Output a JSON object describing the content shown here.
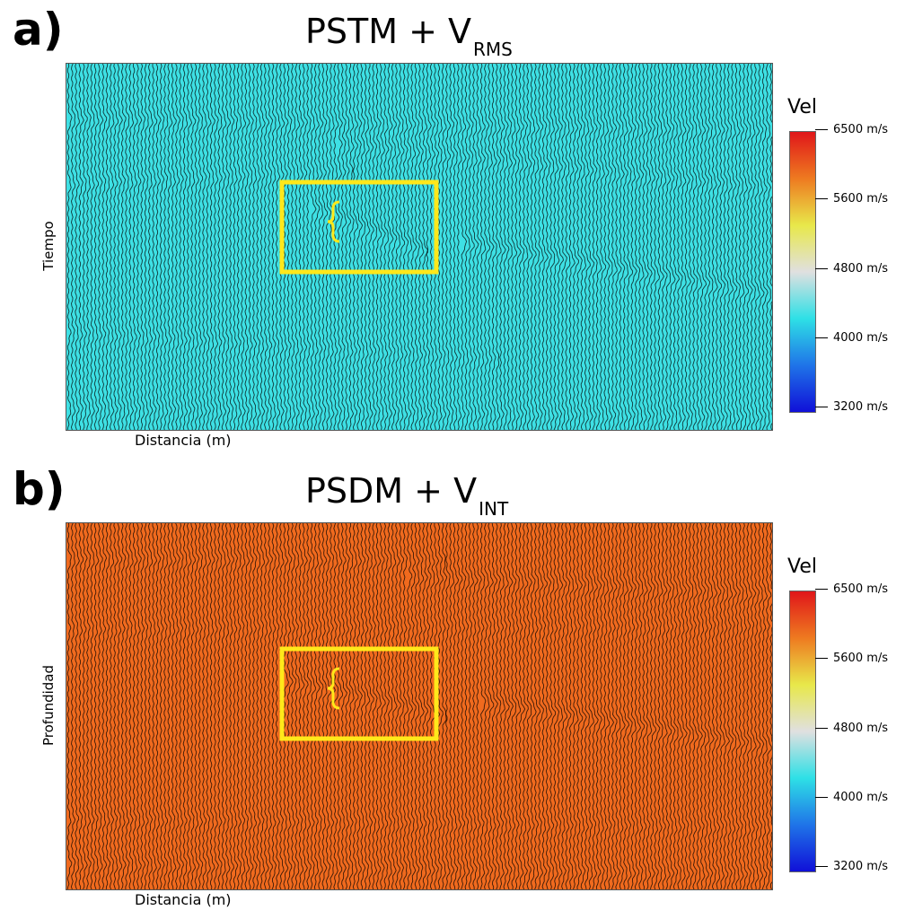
{
  "panels": [
    {
      "letter": "a)",
      "title_main": "PSTM + V",
      "title_sub": "RMS",
      "ylabel": "Tiempo",
      "xlabel": "Distancia (m)",
      "background_color": "#3ee0e4",
      "wiggle_color": "#000000",
      "highlight_color": "#ffe81a"
    },
    {
      "letter": "b)",
      "title_main": "PSDM + V",
      "title_sub": "INT",
      "ylabel": "Profundidad",
      "xlabel": "Distancia (m)",
      "background_color": "#f06a1e",
      "wiggle_color": "#000000",
      "highlight_color": "#ffe81a"
    }
  ],
  "colorbar": {
    "title": "Vel",
    "ticks": [
      "6500 m/s",
      "5600 m/s",
      "4800 m/s",
      "4000 m/s",
      "3200 m/s"
    ],
    "colors": [
      "#e0161a",
      "#ee7a20",
      "#e8e84a",
      "#e0e0e0",
      "#2ee0e6",
      "#1f74e8",
      "#1010d8"
    ]
  }
}
